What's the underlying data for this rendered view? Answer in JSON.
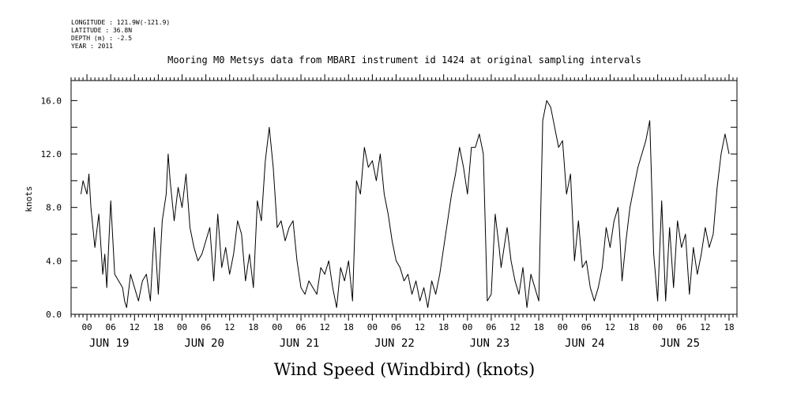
{
  "header": {
    "lines": [
      "LONGITUDE : 121.9W(-121.9)",
      "LATITUDE : 36.8N",
      "DEPTH (m) : -2.5",
      "YEAR : 2011"
    ]
  },
  "chart_data": {
    "type": "line",
    "title": "Mooring M0 Metsys data from MBARI instrument id 1424 at original sampling intervals",
    "xlabel": "Wind Speed (Windbird) (knots)",
    "ylabel": "knots",
    "ylim": [
      0,
      17.5
    ],
    "yticks": [
      "0.0",
      "4.0",
      "8.0",
      "12.0",
      "16.0"
    ],
    "ytick_values": [
      0,
      4,
      8,
      12,
      16
    ],
    "xlim_hours": [
      -4,
      164
    ],
    "xtick_labels": [
      "00",
      "06",
      "12",
      "18",
      "00",
      "06",
      "12",
      "18",
      "00",
      "06",
      "12",
      "18",
      "00",
      "06",
      "12",
      "18",
      "00",
      "06",
      "12",
      "18",
      "00",
      "06",
      "12",
      "18",
      "00",
      "06",
      "12",
      "18"
    ],
    "date_labels": [
      "JUN 19",
      "JUN 20",
      "JUN 21",
      "JUN 22",
      "JUN 23",
      "JUN 24",
      "JUN 25"
    ],
    "grid": false,
    "series": [
      {
        "x_hours": [
          -1.5,
          -1,
          -0.5,
          0,
          0.5,
          1,
          2,
          3,
          4,
          4.5,
          5,
          6,
          7,
          8,
          9,
          9.5,
          10,
          11,
          12,
          13,
          14,
          15,
          16,
          17,
          18,
          19,
          20,
          20.5,
          21,
          22,
          23,
          24,
          25,
          26,
          27,
          28,
          29,
          30,
          31,
          32,
          33,
          34,
          35,
          36,
          37,
          38,
          39,
          40,
          41,
          42,
          43,
          44,
          45,
          46,
          47,
          48,
          49,
          50,
          51,
          52,
          53,
          54,
          55,
          56,
          57,
          58,
          59,
          60,
          61,
          62,
          63,
          64,
          65,
          66,
          67,
          68,
          69,
          70,
          71,
          72,
          73,
          74,
          75,
          76,
          77,
          78,
          79,
          80,
          81,
          82,
          83,
          84,
          85,
          86,
          87,
          88,
          89,
          90,
          91,
          92,
          93,
          94,
          95,
          96,
          97,
          98,
          99,
          100,
          101,
          102,
          103,
          104,
          104.5,
          105,
          106,
          107,
          108,
          109,
          110,
          111,
          112,
          113,
          114,
          115,
          116,
          117,
          118,
          119,
          120,
          121,
          122,
          123,
          124,
          125,
          126,
          127,
          128,
          129,
          130,
          131,
          132,
          133,
          134,
          134.5,
          135,
          136,
          137,
          138,
          139,
          140,
          141,
          142,
          143,
          144,
          145,
          146,
          147,
          148,
          149,
          150,
          151,
          152,
          153,
          154,
          155,
          156,
          157,
          158,
          159,
          160,
          161,
          162
        ],
        "values": [
          9.0,
          10.0,
          9.5,
          9.0,
          10.5,
          8.0,
          5.0,
          7.5,
          3.0,
          4.5,
          2.0,
          8.5,
          3.0,
          2.5,
          2.0,
          1.0,
          0.5,
          3.0,
          2.0,
          1.0,
          2.5,
          3.0,
          1.0,
          6.5,
          1.5,
          7.0,
          9.0,
          12.0,
          10.0,
          7.0,
          9.5,
          8.0,
          10.5,
          6.5,
          5.0,
          4.0,
          4.5,
          5.5,
          6.5,
          2.5,
          7.5,
          3.5,
          5.0,
          3.0,
          4.5,
          7.0,
          6.0,
          2.5,
          4.5,
          2.0,
          8.5,
          7.0,
          11.5,
          14.0,
          11.0,
          6.5,
          7.0,
          5.5,
          6.5,
          7.0,
          4.0,
          2.0,
          1.5,
          2.5,
          2.0,
          1.5,
          3.5,
          3.0,
          4.0,
          2.0,
          0.5,
          3.5,
          2.5,
          4.0,
          1.0,
          10.0,
          9.0,
          12.5,
          11.0,
          11.5,
          10.0,
          12.0,
          9.0,
          7.5,
          5.5,
          4.0,
          3.5,
          2.5,
          3.0,
          1.5,
          2.5,
          1.0,
          2.0,
          0.5,
          2.5,
          1.5,
          3.0,
          5.0,
          7.0,
          9.0,
          10.5,
          12.5,
          11.0,
          9.0,
          12.5,
          12.5,
          13.5,
          12.0,
          1.0,
          1.5,
          7.5,
          5.0,
          3.5,
          4.5,
          6.5,
          4.0,
          2.5,
          1.5,
          3.5,
          0.5,
          3.0,
          2.0,
          1.0,
          14.5,
          16.0,
          15.5,
          14.0,
          12.5,
          13.0,
          9.0,
          10.5,
          4.0,
          7.0,
          3.5,
          4.0,
          2.0,
          1.0,
          2.0,
          3.5,
          6.5,
          5.0,
          7.0,
          8.0,
          5.5,
          2.5,
          5.5,
          8.0,
          9.5,
          11.0,
          12.0,
          13.0,
          14.5,
          4.5,
          1.0,
          8.5,
          1.0,
          6.5,
          2.0,
          7.0,
          5.0,
          6.0,
          1.5,
          5.0,
          3.0,
          4.5,
          6.5,
          5.0,
          6.0,
          9.5,
          12.0,
          13.5,
          12.0
        ]
      }
    ]
  }
}
